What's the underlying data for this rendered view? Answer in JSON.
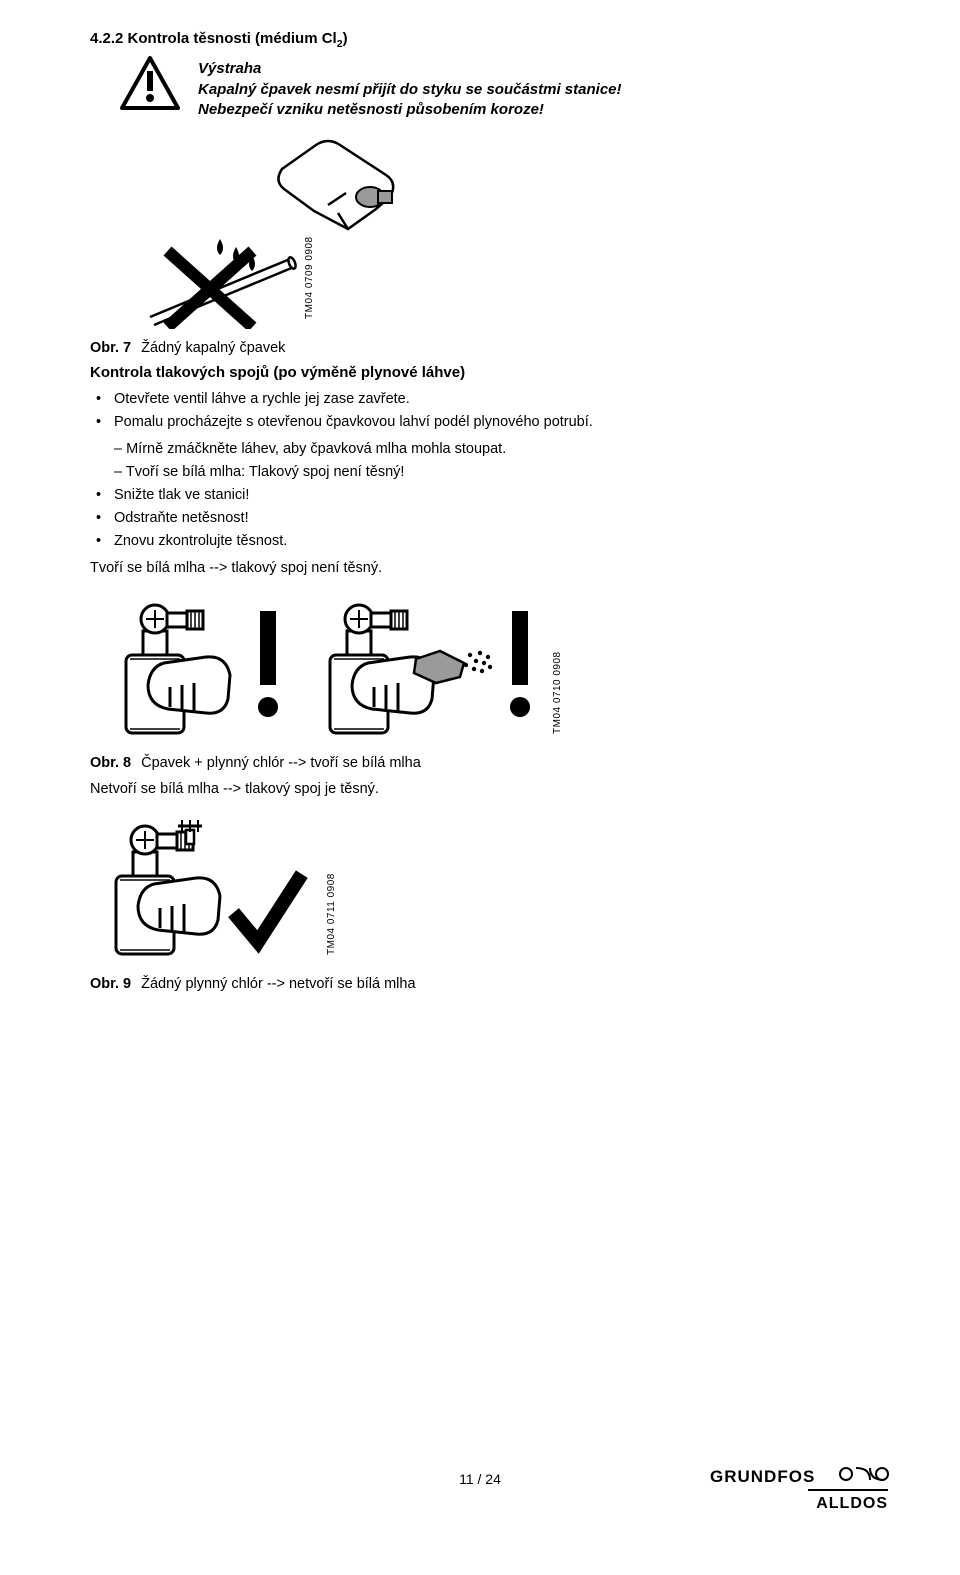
{
  "section": {
    "number": "4.2.2",
    "title_html": "Kontrola těsnosti (médium Cl<sub>2</sub>)"
  },
  "warning": {
    "title": "Výstraha",
    "line1": "Kapalný čpavek nesmí přijít do styku se součástmi stanice!",
    "line2": "Nebezpečí vzniku netěsnosti působením koroze!"
  },
  "fig7": {
    "tm": "TM04 0709 0908",
    "cap_label": "Obr. 7",
    "cap_text": "Žádný kapalný čpavek"
  },
  "sub_heading": "Kontrola tlakových spojů (po výměně plynové láhve)",
  "bullets": {
    "b1": "Otevřete ventil láhve a rychle jej zase zavřete.",
    "b2": "Pomalu procházejte s otevřenou čpavkovou lahví podél plynového potrubí.",
    "d1": "– Mírně zmáčkněte láhev, aby čpavková mlha mohla stoupat.",
    "d2": "– Tvoří se bílá mlha: Tlakový spoj není těsný!",
    "b3": "Snižte tlak ve stanici!",
    "b4": "Odstraňte netěsnost!",
    "b5": "Znovu zkontrolujte těsnost."
  },
  "plain1": "Tvoří se bílá mlha --> tlakový spoj není těsný.",
  "fig8": {
    "tm": "TM04 0710 0908",
    "cap_label": "Obr. 8",
    "cap_text": "Čpavek + plynný chlór --> tvoří se bílá mlha"
  },
  "plain2": "Netvoří se bílá mlha --> tlakový spoj je těsný.",
  "fig9": {
    "tm": "TM04 0711 0908",
    "cap_label": "Obr. 9",
    "cap_text": "Žádný plynný chlór --> netvoří se bílá mlha"
  },
  "footer_page": "11 / 24",
  "logo_top": "GRUNDFOS",
  "logo_bottom": "ALLDOS"
}
